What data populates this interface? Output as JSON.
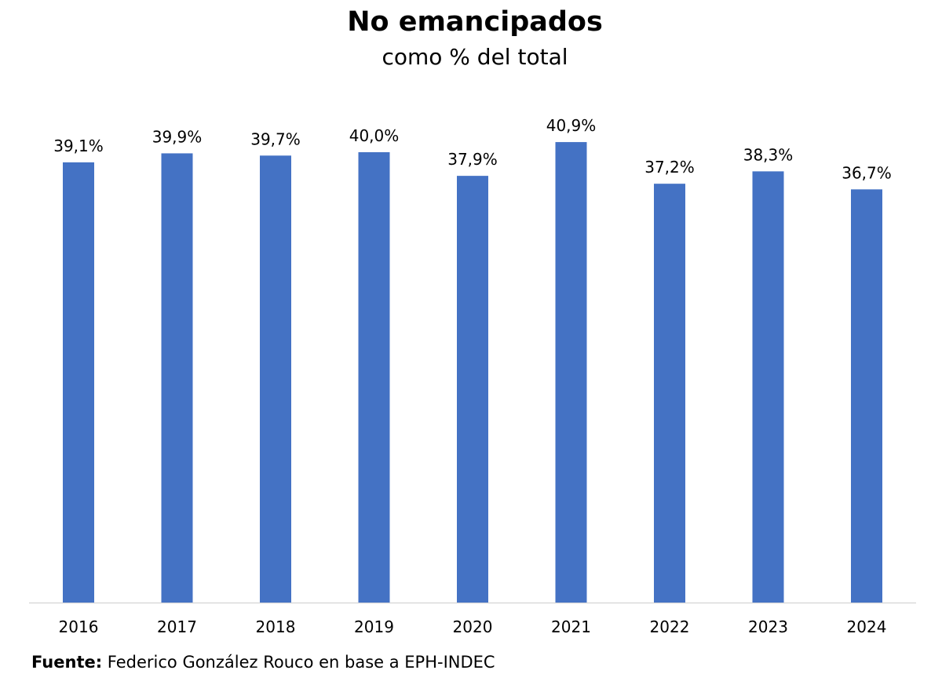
{
  "chart_data": {
    "type": "bar",
    "title": "No emancipados",
    "subtitle": "como % del total",
    "categories": [
      "2016",
      "2017",
      "2018",
      "2019",
      "2020",
      "2021",
      "2022",
      "2023",
      "2024"
    ],
    "values": [
      39.1,
      39.9,
      39.7,
      40.0,
      37.9,
      40.9,
      37.2,
      38.3,
      36.7
    ],
    "data_labels": [
      "39,1%",
      "39,9%",
      "39,7%",
      "40,0%",
      "37,9%",
      "40,9%",
      "37,2%",
      "38,3%",
      "36,7%"
    ],
    "xlabel": "",
    "ylabel": "",
    "ylim": [
      0,
      41
    ],
    "y_axis_visible": false,
    "grid": false,
    "legend": "none",
    "bar_color": "#4472C4"
  },
  "source": {
    "label": "Fuente:",
    "text": " Federico González Rouco en base a EPH-INDEC"
  }
}
